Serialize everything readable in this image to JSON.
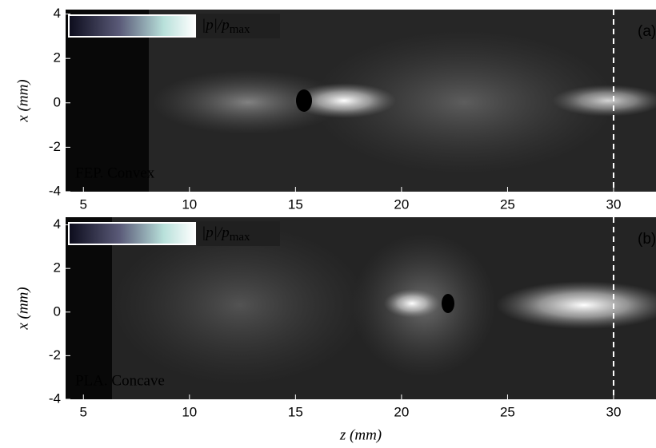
{
  "chart_data": [
    {
      "type": "heatmap",
      "annotation": "(a)",
      "label": "FEP. Convex",
      "colorbar_label": "|p|/p",
      "colorbar_label_sub": "max",
      "ylabel": "x (mm)",
      "xlim": [
        4.16,
        32
      ],
      "ylim": [
        -4,
        4.2
      ],
      "xticks": [
        5,
        10,
        15,
        20,
        25,
        30
      ],
      "yticks": [
        -4,
        -2,
        0,
        2,
        4
      ],
      "vline": 30
    },
    {
      "type": "heatmap",
      "annotation": "(b)",
      "label": "PLA. Concave",
      "colorbar_label": "|p|/p",
      "colorbar_label_sub": "max",
      "xlabel": "z (mm)",
      "ylabel": "x (mm)",
      "xlim": [
        4.16,
        32
      ],
      "ylim": [
        -4,
        4.35
      ],
      "xticks": [
        5,
        10,
        15,
        20,
        25,
        30
      ],
      "yticks": [
        -4,
        -2,
        0,
        2,
        4
      ],
      "vline": 30
    }
  ]
}
